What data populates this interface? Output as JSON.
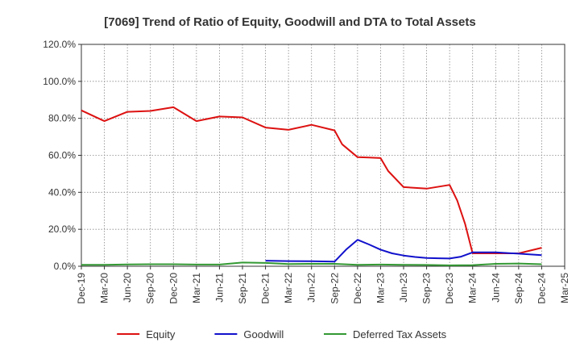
{
  "chart_data": {
    "type": "line",
    "title": "[7069]  Trend of Ratio of Equity, Goodwill and DTA to Total Assets",
    "xlabel": "",
    "ylabel": "",
    "ylim": [
      0,
      120
    ],
    "yticks": [
      0,
      20,
      40,
      60,
      80,
      100,
      120
    ],
    "ytick_labels": [
      "0.0%",
      "20.0%",
      "40.0%",
      "60.0%",
      "80.0%",
      "100.0%",
      "120.0%"
    ],
    "grid": true,
    "legend_position": "bottom",
    "x_categories": [
      "Dec-19",
      "Mar-20",
      "Jun-20",
      "Sep-20",
      "Dec-20",
      "Mar-21",
      "Jun-21",
      "Sep-21",
      "Dec-21",
      "Mar-22",
      "Jun-22",
      "Sep-22",
      "Dec-22",
      "Mar-23",
      "Jun-23",
      "Sep-23",
      "Dec-23",
      "Mar-24",
      "Jun-24",
      "Sep-24",
      "Dec-24",
      "Mar-25"
    ],
    "series": [
      {
        "name": "Equity",
        "color": "#dd1111",
        "points": [
          [
            0,
            84.3
          ],
          [
            1,
            78.5
          ],
          [
            2,
            83.5
          ],
          [
            3,
            84.0
          ],
          [
            4,
            86.0
          ],
          [
            5,
            78.5
          ],
          [
            6,
            81.0
          ],
          [
            7,
            80.5
          ],
          [
            8,
            75.0
          ],
          [
            9,
            73.8
          ],
          [
            10,
            76.5
          ],
          [
            11,
            73.5
          ],
          [
            11.33,
            66.0
          ],
          [
            12,
            59.0
          ],
          [
            12.5,
            58.8
          ],
          [
            13,
            58.5
          ],
          [
            13.33,
            51.5
          ],
          [
            14,
            42.8
          ],
          [
            15,
            42.0
          ],
          [
            16,
            44.0
          ],
          [
            16.33,
            35.5
          ],
          [
            16.67,
            23.0
          ],
          [
            17,
            7.0
          ],
          [
            18,
            7.0
          ],
          [
            19,
            7.0
          ],
          [
            20,
            10.0
          ]
        ]
      },
      {
        "name": "Goodwill",
        "color": "#1111cc",
        "points": [
          [
            8,
            3.0
          ],
          [
            9,
            2.8
          ],
          [
            10,
            2.7
          ],
          [
            11,
            2.5
          ],
          [
            11.5,
            9.0
          ],
          [
            12,
            14.3
          ],
          [
            12.5,
            11.8
          ],
          [
            13,
            9.0
          ],
          [
            13.5,
            7.0
          ],
          [
            14,
            5.8
          ],
          [
            14.5,
            5.0
          ],
          [
            15,
            4.5
          ],
          [
            15.5,
            4.3
          ],
          [
            16,
            4.2
          ],
          [
            16.5,
            5.2
          ],
          [
            17,
            7.5
          ],
          [
            18,
            7.5
          ],
          [
            19,
            6.8
          ],
          [
            20,
            6.0
          ]
        ]
      },
      {
        "name": "Deferred Tax Assets",
        "color": "#339933",
        "points": [
          [
            0,
            0.8
          ],
          [
            1,
            0.8
          ],
          [
            2,
            1.0
          ],
          [
            3,
            1.1
          ],
          [
            4,
            1.1
          ],
          [
            5,
            0.9
          ],
          [
            6,
            0.9
          ],
          [
            7,
            2.0
          ],
          [
            8,
            1.8
          ],
          [
            9,
            1.2
          ],
          [
            10,
            1.3
          ],
          [
            11,
            1.3
          ],
          [
            12,
            0.8
          ],
          [
            13,
            0.9
          ],
          [
            14,
            0.8
          ],
          [
            15,
            0.7
          ],
          [
            16,
            0.5
          ],
          [
            17,
            0.6
          ],
          [
            18,
            1.3
          ],
          [
            19,
            1.5
          ],
          [
            20,
            1.1
          ]
        ]
      }
    ]
  }
}
